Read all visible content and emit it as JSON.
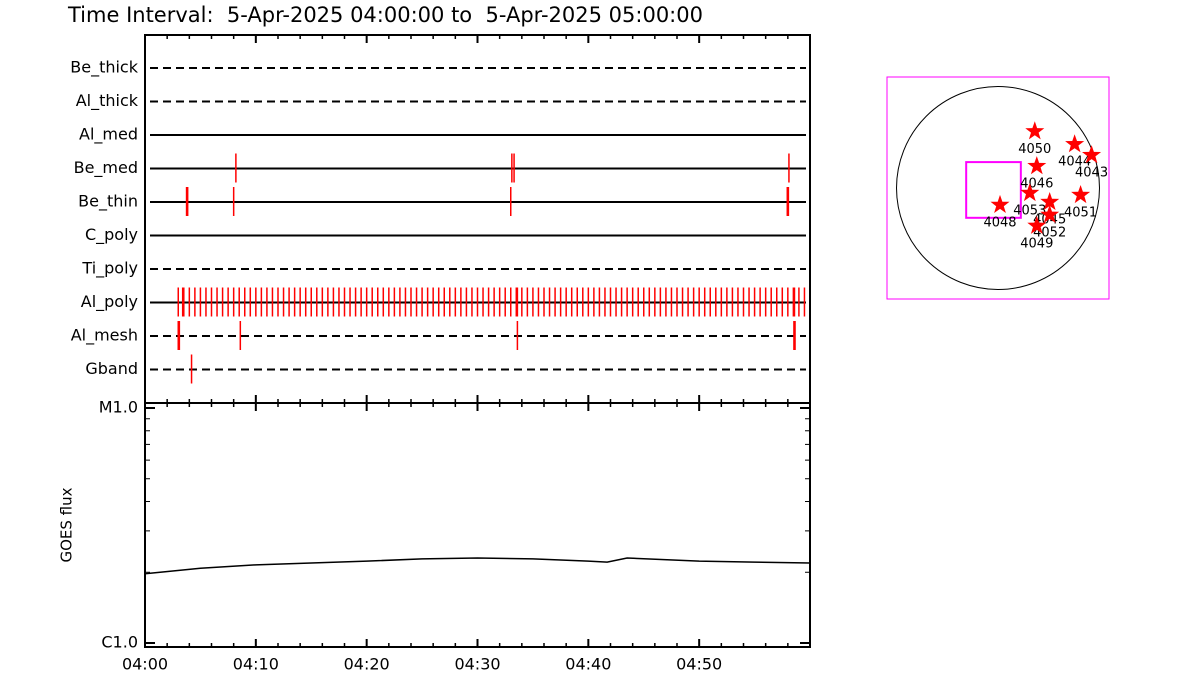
{
  "title": "Time Interval:  5-Apr-2025 04:00:00 to  5-Apr-2025 05:00:00",
  "timeline": {
    "xlim": [
      0,
      60
    ],
    "xticks": [
      {
        "value": 0,
        "label": "04:00"
      },
      {
        "value": 10,
        "label": "04:10"
      },
      {
        "value": 20,
        "label": "04:20"
      },
      {
        "value": 30,
        "label": "04:30"
      },
      {
        "value": 40,
        "label": "04:40"
      },
      {
        "value": 50,
        "label": "04:50"
      }
    ],
    "xminor": [
      2,
      4,
      6,
      8,
      12,
      14,
      16,
      18,
      22,
      24,
      26,
      28,
      32,
      34,
      36,
      38,
      42,
      44,
      46,
      48,
      52,
      54,
      56,
      58
    ],
    "event_color": "#ff0000",
    "filters": [
      {
        "name": "Be_thick",
        "style": "dashed",
        "events": []
      },
      {
        "name": "Al_thick",
        "style": "dashed",
        "events": []
      },
      {
        "name": "Al_med",
        "style": "solid",
        "events": []
      },
      {
        "name": "Be_med",
        "style": "solid",
        "events": [
          8.2,
          33.1,
          33.3,
          58.1
        ]
      },
      {
        "name": "Be_thin",
        "style": "solid",
        "events": [
          3.75,
          3.85,
          8.0,
          33.0,
          57.95,
          58.05
        ]
      },
      {
        "name": "C_poly",
        "style": "solid",
        "events": []
      },
      {
        "name": "Ti_poly",
        "style": "dashed",
        "events": []
      },
      {
        "name": "Al_poly",
        "style": "solid",
        "events": [
          3,
          3.4,
          3.5,
          4,
          4.5,
          5,
          5.5,
          6,
          6.5,
          7,
          7.5,
          8,
          8.5,
          9,
          9.5,
          10,
          10.5,
          11,
          11.5,
          12,
          12.5,
          13,
          13.5,
          14,
          14.5,
          15,
          15.5,
          16,
          16.5,
          17,
          17.5,
          18,
          18.5,
          19,
          19.5,
          20,
          20.5,
          21,
          21.5,
          22,
          22.5,
          23,
          23.5,
          24,
          24.5,
          25,
          25.5,
          26,
          26.5,
          27,
          27.5,
          28,
          28.5,
          29,
          29.5,
          30,
          30.5,
          31,
          31.5,
          32,
          32.5,
          33,
          33.5,
          33.6,
          34,
          34.5,
          35,
          35.5,
          36,
          36.5,
          37,
          37.5,
          38,
          38.5,
          39,
          39.5,
          40,
          40.5,
          41,
          41.5,
          42,
          42.5,
          43,
          43.5,
          44,
          44.5,
          45,
          45.5,
          46,
          46.5,
          47,
          47.5,
          48,
          48.5,
          49,
          49.5,
          50,
          50.5,
          51,
          51.5,
          52,
          52.5,
          53,
          53.5,
          54,
          54.5,
          55,
          55.5,
          56,
          56.5,
          57,
          57.5,
          58,
          58.5,
          58.6,
          59,
          59.5
        ]
      },
      {
        "name": "Al_mesh",
        "style": "dashed",
        "events": [
          3.0,
          3.1,
          8.6,
          33.6,
          58.55,
          58.65
        ]
      },
      {
        "name": "Gband",
        "style": "dashed",
        "events": [
          4.2
        ]
      }
    ]
  },
  "goes": {
    "ylabel": "GOES flux",
    "log": true,
    "ylim": [
      1e-06,
      1e-05
    ],
    "yticks": [
      {
        "value": 1e-06,
        "label": "C1.0"
      },
      {
        "value": 1e-05,
        "label": "M1.0"
      }
    ],
    "yminor": [
      2e-06,
      3e-06,
      4e-06,
      5e-06,
      6e-06,
      7e-06,
      8e-06,
      9e-06
    ],
    "x": [
      0,
      5,
      10,
      15,
      20,
      25,
      30,
      35,
      40,
      41.7,
      43.5,
      50,
      55,
      60
    ],
    "values": [
      1.97e-06,
      2.08e-06,
      2.15e-06,
      2.19e-06,
      2.23e-06,
      2.28e-06,
      2.3e-06,
      2.28e-06,
      2.23e-06,
      2.21e-06,
      2.3e-06,
      2.23e-06,
      2.21e-06,
      2.19e-06
    ]
  },
  "map": {
    "xlim": [
      -1050,
      1050
    ],
    "ylim": [
      -1050,
      1050
    ],
    "solar_radius": 960,
    "fov": {
      "x": [
        -301,
        216
      ],
      "y": [
        -282,
        245
      ]
    },
    "frame_color": "#ff00ff",
    "region_color": "#ff0000",
    "regions": [
      {
        "label": "4050",
        "x": 348,
        "y": 536
      },
      {
        "label": "4044",
        "x": 725,
        "y": 414
      },
      {
        "label": "4043",
        "x": 885,
        "y": 311
      },
      {
        "label": "4046",
        "x": 367,
        "y": 207
      },
      {
        "label": "4053",
        "x": 301,
        "y": -47
      },
      {
        "label": "4045",
        "x": 489,
        "y": -132
      },
      {
        "label": "4051",
        "x": 781,
        "y": -66
      },
      {
        "label": "4048",
        "x": 19,
        "y": -160
      },
      {
        "label": "4052",
        "x": 489,
        "y": -254
      },
      {
        "label": "4049",
        "x": 367,
        "y": -358
      }
    ]
  }
}
